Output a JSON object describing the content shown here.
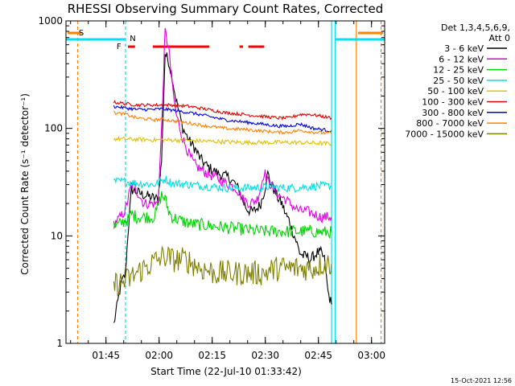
{
  "chart_data": {
    "type": "line",
    "title": "RHESSI Observing Summary Count Rates, Corrected",
    "xlabel": "Start Time (22-Jul-10 01:33:42)",
    "ylabel": "Corrected Count Rate (s⁻¹ detector⁻¹)",
    "yscale": "log",
    "ylim": [
      1,
      1000
    ],
    "xlim_minutes": [
      0,
      90
    ],
    "x_ticks": [
      {
        "label": "01:45",
        "min": 11.3
      },
      {
        "label": "02:00",
        "min": 26.3
      },
      {
        "label": "02:15",
        "min": 41.3
      },
      {
        "label": "02:30",
        "min": 56.3
      },
      {
        "label": "02:45",
        "min": 71.3
      },
      {
        "label": "03:00",
        "min": 86.3
      }
    ],
    "y_ticks": [
      {
        "label": "1",
        "v": 1
      },
      {
        "label": "10",
        "v": 10
      },
      {
        "label": "100",
        "v": 100
      },
      {
        "label": "1000",
        "v": 1000
      }
    ],
    "legend_header": [
      "Det 1,3,4,5,6,9,",
      "Att 0"
    ],
    "legend_placement": "right",
    "flags": {
      "S": "S",
      "N": "N",
      "F": "F"
    },
    "timestamp": "15-Oct-2021 12:56",
    "data_min": 13.5,
    "data_max": 75.0,
    "vlines": [
      {
        "min": 3.3,
        "color": "#ff8000",
        "style": "dash"
      },
      {
        "min": 16.8,
        "color": "#00e0f0",
        "style": "dash"
      },
      {
        "min": 75.0,
        "color": "#00e0f0",
        "style": "solid"
      },
      {
        "min": 76.0,
        "color": "#00e0f0",
        "style": "solid"
      },
      {
        "min": 82.0,
        "color": "#ff8000",
        "style": "solid"
      },
      {
        "min": 89.0,
        "color": "#ff8000",
        "style": "dash"
      }
    ],
    "series": [
      {
        "name": "3 - 6 keV",
        "color": "#000000",
        "x": [
          13.5,
          15.5,
          16.8,
          17.5,
          18.5,
          22,
          26,
          27,
          28,
          29,
          30,
          31,
          33,
          35,
          36,
          37,
          38,
          40,
          43,
          46,
          48,
          49,
          50,
          51,
          52,
          53,
          54,
          55,
          56,
          57,
          58,
          59,
          60,
          61,
          62,
          63,
          64,
          65,
          66,
          67,
          68,
          69,
          70,
          71,
          72,
          73,
          74,
          75
        ],
        "y": [
          1.5,
          3.5,
          4.5,
          10.5,
          27,
          24,
          22,
          50,
          500,
          420,
          300,
          190,
          100,
          75,
          68,
          60,
          52,
          44,
          38,
          35,
          30,
          26,
          21,
          18,
          17,
          17,
          18,
          20,
          26,
          38,
          30,
          26,
          22,
          20,
          16,
          14,
          11,
          9,
          7,
          6.5,
          6.5,
          6.0,
          6.5,
          7.0,
          7.0,
          6.0,
          3.0,
          2.3
        ]
      },
      {
        "name": "6 - 12 keV",
        "color": "#e000e0",
        "x": [
          13.5,
          15.5,
          16.8,
          17.5,
          18.5,
          19.5,
          22,
          26,
          27,
          28,
          29,
          30,
          31,
          33,
          35,
          36,
          37,
          40,
          43,
          46,
          48,
          50,
          52,
          54,
          55,
          56,
          57,
          58,
          60,
          62,
          64,
          66,
          68,
          70,
          72,
          74,
          75
        ],
        "y": [
          13,
          15,
          17.5,
          22,
          30,
          28,
          20,
          20,
          100,
          800,
          560,
          250,
          140,
          80,
          55,
          48,
          44,
          38,
          34,
          30,
          28,
          22,
          20,
          22,
          28,
          40,
          32,
          30,
          24,
          22,
          19,
          17,
          17,
          16,
          15,
          15,
          15
        ]
      },
      {
        "name": "12 - 25 keV",
        "color": "#00d000",
        "x": [
          13.5,
          15.5,
          16.8,
          17.5,
          18.5,
          20,
          22,
          25,
          27,
          28,
          29,
          30,
          32,
          35,
          40,
          45,
          50,
          55,
          60,
          65,
          70,
          72,
          74,
          75
        ],
        "y": [
          12,
          13,
          14,
          14,
          16,
          15,
          15,
          15,
          24,
          22,
          17,
          15,
          14,
          13,
          12.5,
          12,
          11.5,
          11,
          11,
          11,
          11,
          10.8,
          10.8,
          10.8
        ]
      },
      {
        "name": "25 - 50 keV",
        "color": "#00e0e0",
        "x": [
          13.5,
          16.8,
          20,
          25,
          28,
          30,
          35,
          40,
          45,
          50,
          55,
          58,
          60,
          65,
          70,
          75
        ],
        "y": [
          32,
          32,
          31,
          30,
          34,
          31,
          30,
          29,
          28,
          28,
          28,
          29,
          28,
          28,
          29,
          29
        ]
      },
      {
        "name": "50 - 100 keV",
        "color": "#e0c000",
        "x": [
          13.5,
          20,
          25,
          27,
          30,
          35,
          40,
          45,
          50,
          55,
          60,
          65,
          70,
          75
        ],
        "y": [
          80,
          79,
          78,
          78,
          78,
          77,
          76,
          75,
          74,
          74,
          74,
          74,
          73,
          72
        ]
      },
      {
        "name": "100 - 300 keV",
        "color": "#e00000",
        "x": [
          13.5,
          16.8,
          20,
          25,
          27,
          30,
          35,
          40,
          45,
          50,
          55,
          60,
          63,
          66,
          69,
          72,
          75
        ],
        "y": [
          175,
          170,
          165,
          165,
          165,
          165,
          160,
          150,
          140,
          135,
          130,
          125,
          125,
          135,
          135,
          130,
          125
        ]
      },
      {
        "name": "300 - 800 keV",
        "color": "#0000e0",
        "x": [
          13.5,
          16.8,
          20,
          25,
          27,
          30,
          35,
          40,
          45,
          50,
          55,
          60,
          63,
          66,
          70,
          75
        ],
        "y": [
          160,
          155,
          150,
          150,
          152,
          148,
          140,
          130,
          120,
          115,
          110,
          105,
          105,
          110,
          100,
          95
        ]
      },
      {
        "name": "800 - 7000 keV",
        "color": "#ff8000",
        "x": [
          13.5,
          16.8,
          20,
          25,
          27,
          30,
          35,
          40,
          45,
          50,
          55,
          60,
          63,
          66,
          70,
          75
        ],
        "y": [
          140,
          135,
          125,
          120,
          122,
          118,
          112,
          105,
          100,
          98,
          95,
          92,
          92,
          96,
          92,
          90
        ]
      },
      {
        "name": "7000 - 15000 keV",
        "color": "#808000",
        "x": [
          13.5,
          16.8,
          18,
          20,
          22,
          24,
          26,
          28,
          30,
          32,
          34,
          36,
          38,
          40,
          42,
          44,
          46,
          48,
          50,
          52,
          54,
          56,
          58,
          60,
          62,
          64,
          66,
          68,
          70,
          72,
          74,
          75
        ],
        "y": [
          3.5,
          3.8,
          4.0,
          4.5,
          5.0,
          5.5,
          6.0,
          6.5,
          6.0,
          6.0,
          6.0,
          5.5,
          5.0,
          4.8,
          4.5,
          4.5,
          4.5,
          4.5,
          4.5,
          4.5,
          4.5,
          4.5,
          4.8,
          5.0,
          5.0,
          5.0,
          5.0,
          5.0,
          5.0,
          5.5,
          5.5,
          5.5
        ]
      }
    ]
  }
}
